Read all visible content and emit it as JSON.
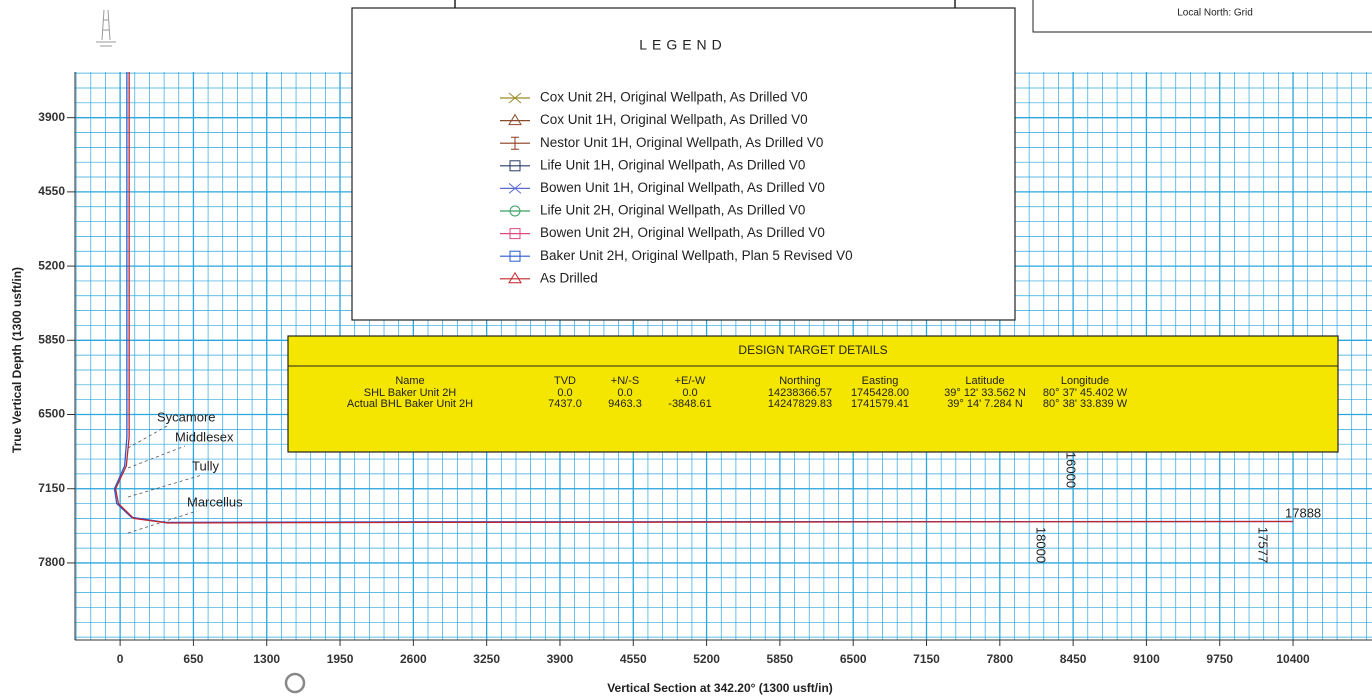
{
  "chart_data": {
    "type": "line",
    "x_label": "Vertical Section at 342.20° (1300 usft/in)",
    "y_label": "True Vertical Depth (1300 usft/in)",
    "xlim": [
      -400,
      11100
    ],
    "ylim": [
      3500,
      8475
    ],
    "invert_y": true,
    "grid": true,
    "grid_color": "#2aa6de",
    "xticks": [
      0,
      650,
      1300,
      1950,
      2600,
      3250,
      3900,
      4550,
      5200,
      5850,
      6500,
      7150,
      7800,
      8450,
      9100,
      9750,
      10400
    ],
    "yticks": [
      3900,
      4550,
      5200,
      5850,
      6500,
      7150,
      7800
    ],
    "legend_title": "LEGEND",
    "series": [
      {
        "name": "Cox Unit 2H, Original Wellpath, As Drilled V0",
        "color": "#9a8a2a",
        "marker": "x",
        "x": [],
        "values": []
      },
      {
        "name": "Cox Unit 1H, Original Wellpath, As Drilled V0",
        "color": "#8b4a2a",
        "marker": "triangle",
        "x": [],
        "values": []
      },
      {
        "name": "Nestor Unit 1H, Original Wellpath, As Drilled V0",
        "color": "#8b3a1a",
        "marker": "ibar",
        "x": [],
        "values": []
      },
      {
        "name": "Life Unit 1H, Original Wellpath, As Drilled V0",
        "color": "#2a3a6a",
        "marker": "square",
        "x": [],
        "values": []
      },
      {
        "name": "Bowen Unit 1H, Original Wellpath, As Drilled V0",
        "color": "#5a6ad0",
        "marker": "x",
        "x": [],
        "values": []
      },
      {
        "name": "Life Unit 2H, Original Wellpath, As Drilled V0",
        "color": "#3aa060",
        "marker": "circle",
        "x": [],
        "values": []
      },
      {
        "name": "Bowen Unit 2H, Original Wellpath, As Drilled V0",
        "color": "#e04a7a",
        "marker": "square",
        "x": [],
        "values": []
      },
      {
        "name": "Baker Unit 2H, Original Wellpath, Plan 5 Revised V0",
        "color": "#2a5ad0",
        "marker": "square",
        "x": [
          60,
          60,
          40,
          -50,
          -30,
          100,
          400,
          2600,
          10400
        ],
        "values": [
          3500,
          6700,
          6950,
          7150,
          7280,
          7400,
          7445,
          7440,
          7437
        ]
      },
      {
        "name": "As Drilled",
        "color": "#c0262e",
        "marker": "triangle",
        "x": [
          80,
          80,
          55,
          -40,
          -15,
          120,
          420,
          2600,
          10400
        ],
        "values": [
          3500,
          6700,
          6950,
          7150,
          7280,
          7410,
          7450,
          7445,
          7437
        ]
      }
    ],
    "formations": [
      "Sycamore",
      "Middlesex",
      "Tully",
      "Marcellus"
    ],
    "md_labels": [
      {
        "text": "17888",
        "color": "#c0262e"
      },
      {
        "text": "16000",
        "color": "#c0262e"
      },
      {
        "text": "18000",
        "color": "#2a5ad0"
      },
      {
        "text": "17577",
        "color": "#2a5ad0"
      }
    ]
  },
  "target_table": {
    "title": "DESIGN TARGET DETAILS",
    "columns": [
      "Name",
      "TVD",
      "+N/-S",
      "+E/-W",
      "Northing",
      "Easting",
      "Latitude",
      "Longitude"
    ],
    "rows": [
      [
        "SHL Baker Unit 2H",
        "0.0",
        "0.0",
        "0.0",
        "14238366.57",
        "1745428.00",
        "39° 12' 33.562 N",
        "80° 37' 45.402 W"
      ],
      [
        "Actual BHL Baker Unit 2H",
        "7437.0",
        "9463.3",
        "-3848.61",
        "14247829.83",
        "1741579.41",
        "39° 14' 7.284 N",
        "80° 38' 33.839 W"
      ]
    ]
  },
  "info_box": {
    "text": "Local North: Grid"
  }
}
